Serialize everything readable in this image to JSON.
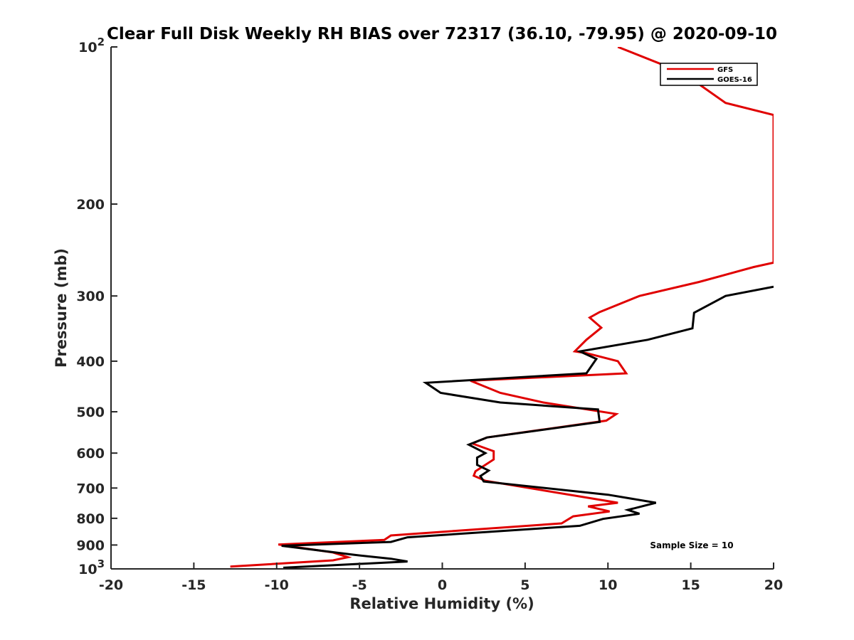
{
  "chart_data": {
    "type": "line",
    "title": "Clear Full Disk Weekly RH BIAS over 72317 (36.10, -79.95) @ 2020-09-10",
    "xlabel": "Relative Humidity (%)",
    "ylabel": "Pressure (mb)",
    "xlim": [
      -20,
      20
    ],
    "ylim": [
      1000,
      100
    ],
    "yscale": "log",
    "y_reversed": true,
    "grid": false,
    "legend_position": "top-right",
    "x_ticks": [
      -20,
      -15,
      -10,
      -5,
      0,
      5,
      10,
      15,
      20
    ],
    "x_tick_labels": [
      "-20",
      "-15",
      "-10",
      "-5",
      "0",
      "5",
      "10",
      "15",
      "20"
    ],
    "y_ticks": [
      {
        "value": 100,
        "base": "10",
        "exp": "2"
      },
      {
        "value": 200,
        "label": "200"
      },
      {
        "value": 300,
        "label": "300"
      },
      {
        "value": 400,
        "label": "400"
      },
      {
        "value": 500,
        "label": "500"
      },
      {
        "value": 600,
        "label": "600"
      },
      {
        "value": 700,
        "label": "700"
      },
      {
        "value": 800,
        "label": "800"
      },
      {
        "value": 900,
        "label": "900"
      },
      {
        "value": 1000,
        "base": "10",
        "exp": "3"
      }
    ],
    "series": [
      {
        "name": "GFS",
        "color": "#e00000",
        "points": [
          [
            10.6,
            100
          ],
          [
            14.5,
            112
          ],
          [
            17.1,
            128
          ],
          [
            20.0,
            135
          ],
          [
            20.0,
            259
          ],
          [
            18.8,
            264
          ],
          [
            15.5,
            282
          ],
          [
            11.9,
            300
          ],
          [
            9.5,
            322
          ],
          [
            8.9,
            330
          ],
          [
            9.6,
            345
          ],
          [
            8.7,
            364
          ],
          [
            8.0,
            383
          ],
          [
            8.7,
            386
          ],
          [
            10.6,
            400
          ],
          [
            11.1,
            422
          ],
          [
            1.7,
            436
          ],
          [
            3.5,
            460
          ],
          [
            6.1,
            480
          ],
          [
            10.5,
            505
          ],
          [
            9.9,
            520
          ],
          [
            2.7,
            560
          ],
          [
            1.8,
            575
          ],
          [
            3.1,
            595
          ],
          [
            3.1,
            617
          ],
          [
            2.0,
            650
          ],
          [
            1.9,
            663
          ],
          [
            2.6,
            678
          ],
          [
            10.6,
            747
          ],
          [
            8.8,
            759
          ],
          [
            10.1,
            776
          ],
          [
            7.9,
            793
          ],
          [
            7.2,
            818
          ],
          [
            -3.1,
            863
          ],
          [
            -3.5,
            880
          ],
          [
            -9.9,
            898
          ],
          [
            -6.6,
            930
          ],
          [
            -5.7,
            950
          ],
          [
            -6.6,
            963
          ],
          [
            -12.8,
            990
          ]
        ]
      },
      {
        "name": "GOES-16",
        "color": "#000000",
        "points": [
          [
            20.0,
            288
          ],
          [
            17.1,
            300
          ],
          [
            15.2,
            323
          ],
          [
            15.1,
            346
          ],
          [
            12.4,
            364
          ],
          [
            8.3,
            383
          ],
          [
            9.3,
            396
          ],
          [
            8.7,
            422
          ],
          [
            -1.0,
            440
          ],
          [
            -0.1,
            460
          ],
          [
            3.5,
            480
          ],
          [
            9.4,
            495
          ],
          [
            9.5,
            523
          ],
          [
            2.7,
            560
          ],
          [
            1.6,
            578
          ],
          [
            2.6,
            600
          ],
          [
            2.1,
            612
          ],
          [
            2.1,
            632
          ],
          [
            2.8,
            648
          ],
          [
            2.3,
            664
          ],
          [
            2.5,
            680
          ],
          [
            10.0,
            721
          ],
          [
            12.9,
            747
          ],
          [
            11.2,
            771
          ],
          [
            11.9,
            784
          ],
          [
            9.7,
            802
          ],
          [
            8.3,
            827
          ],
          [
            -2.1,
            870
          ],
          [
            -3.1,
            888
          ],
          [
            -9.7,
            903
          ],
          [
            -5.3,
            940
          ],
          [
            -3.1,
            956
          ],
          [
            -2.1,
            968
          ],
          [
            -9.6,
            995
          ]
        ]
      }
    ],
    "annotations": [
      {
        "text": "Sample Size = 10"
      }
    ]
  }
}
